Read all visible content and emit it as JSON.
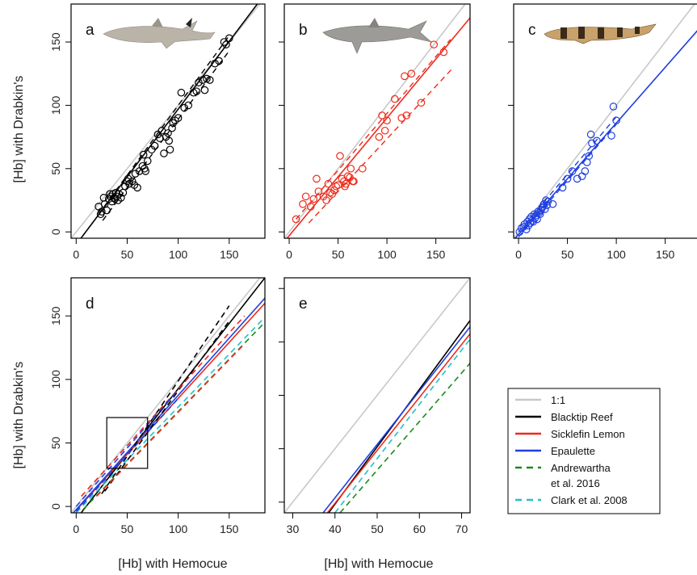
{
  "figure": {
    "ylabel": "[Hb] with Drabkin's",
    "xlabel": "[Hb] with Hemocue"
  },
  "colors": {
    "one_to_one": "#c8c8c8",
    "blacktip": "#000000",
    "sicklefin": "#ee2a1b",
    "epaulette": "#1f3fe0",
    "andrewartha": "#1a8a1a",
    "clark": "#22c0c8"
  },
  "legend": {
    "items": [
      {
        "text": "1:1",
        "color": "#c8c8c8",
        "dash": false
      },
      {
        "text": "Blacktip Reef",
        "color": "#000000",
        "dash": false
      },
      {
        "text": "Sicklefin Lemon",
        "color": "#ee2a1b",
        "dash": false
      },
      {
        "text": "Epaulette",
        "color": "#1f3fe0",
        "dash": false
      },
      {
        "text": "Andrewartha",
        "text2": "et al. 2016",
        "color": "#1a8a1a",
        "dash": true
      },
      {
        "text": "Clark et al. 2008",
        "color": "#22c0c8",
        "dash": true
      }
    ]
  },
  "chart_data": [
    {
      "panel": "a",
      "type": "scatter",
      "species_icon": "blacktip-reef-shark-icon",
      "xlim": [
        -5,
        185
      ],
      "ylim": [
        -5,
        180
      ],
      "xticks": [
        0,
        50,
        100,
        150
      ],
      "yticks": [
        0,
        50,
        100,
        150
      ],
      "color": "#000000",
      "points": [
        [
          22,
          20
        ],
        [
          24,
          14
        ],
        [
          25,
          16
        ],
        [
          27,
          27
        ],
        [
          28,
          22
        ],
        [
          30,
          17
        ],
        [
          32,
          26
        ],
        [
          33,
          30
        ],
        [
          34,
          28
        ],
        [
          35,
          24
        ],
        [
          36,
          30
        ],
        [
          37,
          27
        ],
        [
          38,
          26
        ],
        [
          39,
          31
        ],
        [
          40,
          28
        ],
        [
          41,
          25
        ],
        [
          42,
          30
        ],
        [
          44,
          27
        ],
        [
          46,
          31
        ],
        [
          48,
          36
        ],
        [
          50,
          40
        ],
        [
          51,
          42
        ],
        [
          52,
          38
        ],
        [
          55,
          40
        ],
        [
          57,
          37
        ],
        [
          58,
          46
        ],
        [
          60,
          35
        ],
        [
          62,
          48
        ],
        [
          65,
          52
        ],
        [
          66,
          61
        ],
        [
          67,
          50
        ],
        [
          68,
          48
        ],
        [
          70,
          56
        ],
        [
          74,
          65
        ],
        [
          77,
          68
        ],
        [
          80,
          77
        ],
        [
          82,
          74
        ],
        [
          84,
          80
        ],
        [
          86,
          62
        ],
        [
          88,
          75
        ],
        [
          90,
          78
        ],
        [
          91,
          72
        ],
        [
          92,
          65
        ],
        [
          94,
          82
        ],
        [
          95,
          86
        ],
        [
          97,
          88
        ],
        [
          100,
          90
        ],
        [
          103,
          110
        ],
        [
          106,
          98
        ],
        [
          110,
          100
        ],
        [
          115,
          110
        ],
        [
          118,
          111
        ],
        [
          120,
          118
        ],
        [
          124,
          120
        ],
        [
          126,
          112
        ],
        [
          128,
          121
        ],
        [
          131,
          120
        ],
        [
          136,
          133
        ],
        [
          140,
          135
        ],
        [
          145,
          150
        ],
        [
          147,
          148
        ],
        [
          150,
          153
        ]
      ],
      "fit": {
        "slope": 1.07,
        "intercept": -10
      },
      "ci_upper": [
        [
          22,
          14
        ],
        [
          150,
          155
        ]
      ],
      "ci_lower": [
        [
          26,
          9
        ],
        [
          150,
          143
        ]
      ],
      "one_to_one": true
    },
    {
      "panel": "b",
      "type": "scatter",
      "species_icon": "sicklefin-lemon-shark-icon",
      "xlim": [
        -5,
        185
      ],
      "ylim": [
        -5,
        180
      ],
      "xticks": [
        0,
        50,
        100,
        150
      ],
      "yticks": [
        0,
        50,
        100,
        150
      ],
      "color": "#ee2a1b",
      "points": [
        [
          7,
          10
        ],
        [
          14,
          22
        ],
        [
          17,
          28
        ],
        [
          22,
          20
        ],
        [
          25,
          26
        ],
        [
          28,
          42
        ],
        [
          30,
          32
        ],
        [
          35,
          28
        ],
        [
          38,
          25
        ],
        [
          40,
          38
        ],
        [
          42,
          31
        ],
        [
          44,
          30
        ],
        [
          46,
          33
        ],
        [
          48,
          36
        ],
        [
          50,
          37
        ],
        [
          52,
          60
        ],
        [
          54,
          42
        ],
        [
          56,
          40
        ],
        [
          57,
          36
        ],
        [
          58,
          38
        ],
        [
          60,
          44
        ],
        [
          62,
          43
        ],
        [
          63,
          50
        ],
        [
          65,
          40
        ],
        [
          66,
          40
        ],
        [
          75,
          50
        ],
        [
          92,
          75
        ],
        [
          95,
          92
        ],
        [
          98,
          80
        ],
        [
          100,
          88
        ],
        [
          108,
          105
        ],
        [
          115,
          90
        ],
        [
          118,
          123
        ],
        [
          120,
          92
        ],
        [
          125,
          125
        ],
        [
          135,
          102
        ],
        [
          148,
          148
        ],
        [
          158,
          142
        ]
      ],
      "fit": {
        "slope": 0.93,
        "intercept": -3
      },
      "ci_upper": [
        [
          7,
          10
        ],
        [
          165,
          152
        ]
      ],
      "ci_lower": [
        [
          20,
          7
        ],
        [
          168,
          130
        ]
      ],
      "one_to_one": true
    },
    {
      "panel": "c",
      "type": "scatter",
      "species_icon": "epaulette-shark-icon",
      "xlim": [
        -5,
        185
      ],
      "ylim": [
        -5,
        180
      ],
      "xticks": [
        0,
        50,
        100,
        150
      ],
      "yticks": [
        0,
        50,
        100,
        150
      ],
      "color": "#1f3fe0",
      "points": [
        [
          1,
          0
        ],
        [
          3,
          3
        ],
        [
          5,
          4
        ],
        [
          6,
          6
        ],
        [
          8,
          2
        ],
        [
          9,
          8
        ],
        [
          10,
          5
        ],
        [
          11,
          10
        ],
        [
          12,
          7
        ],
        [
          13,
          12
        ],
        [
          14,
          9
        ],
        [
          15,
          8
        ],
        [
          16,
          14
        ],
        [
          17,
          11
        ],
        [
          18,
          13
        ],
        [
          19,
          10
        ],
        [
          20,
          16
        ],
        [
          21,
          15
        ],
        [
          22,
          14
        ],
        [
          23,
          17
        ],
        [
          24,
          19
        ],
        [
          25,
          20
        ],
        [
          26,
          22
        ],
        [
          27,
          18
        ],
        [
          28,
          25
        ],
        [
          29,
          21
        ],
        [
          30,
          24
        ],
        [
          35,
          22
        ],
        [
          45,
          35
        ],
        [
          50,
          42
        ],
        [
          55,
          48
        ],
        [
          60,
          42
        ],
        [
          65,
          44
        ],
        [
          68,
          48
        ],
        [
          70,
          55
        ],
        [
          72,
          60
        ],
        [
          74,
          77
        ],
        [
          75,
          70
        ],
        [
          80,
          72
        ],
        [
          95,
          76
        ],
        [
          97,
          99
        ],
        [
          100,
          88
        ]
      ],
      "fit": {
        "slope": 0.88,
        "intercept": -2
      },
      "ci_upper": [
        [
          0,
          0
        ],
        [
          100,
          91
        ]
      ],
      "ci_lower": [
        [
          0,
          -4
        ],
        [
          100,
          85
        ]
      ],
      "one_to_one": true
    },
    {
      "panel": "d",
      "type": "line",
      "xlim": [
        -5,
        185
      ],
      "ylim": [
        -5,
        180
      ],
      "xticks": [
        0,
        50,
        100,
        150
      ],
      "yticks": [
        0,
        50,
        100,
        150
      ],
      "lines": [
        {
          "color": "#c8c8c8",
          "dash": false,
          "from": [
            -5,
            -5
          ],
          "to": [
            185,
            185
          ]
        },
        {
          "color": "#000000",
          "dash": false,
          "from": [
            0,
            -10
          ],
          "to": [
            185,
            180
          ]
        },
        {
          "color": "#ee2a1b",
          "dash": false,
          "from": [
            0,
            -3
          ],
          "to": [
            185,
            160
          ]
        },
        {
          "color": "#1f3fe0",
          "dash": false,
          "from": [
            -5,
            -7
          ],
          "to": [
            185,
            164
          ]
        },
        {
          "color": "#1a8a1a",
          "dash": true,
          "from": [
            0,
            -8
          ],
          "to": [
            185,
            145
          ]
        },
        {
          "color": "#22c0c8",
          "dash": true,
          "from": [
            0,
            -5
          ],
          "to": [
            185,
            149
          ]
        },
        {
          "color": "#000000",
          "dash": true,
          "from": [
            25,
            10
          ],
          "to": [
            150,
            158
          ]
        },
        {
          "color": "#000000",
          "dash": true,
          "from": [
            28,
            12
          ],
          "to": [
            150,
            146
          ]
        },
        {
          "color": "#ee2a1b",
          "dash": true,
          "from": [
            5,
            8
          ],
          "to": [
            165,
            150
          ]
        },
        {
          "color": "#ee2a1b",
          "dash": true,
          "from": [
            20,
            8
          ],
          "to": [
            165,
            128
          ]
        },
        {
          "color": "#1f3fe0",
          "dash": true,
          "from": [
            0,
            0
          ],
          "to": [
            100,
            92
          ]
        },
        {
          "color": "#1f3fe0",
          "dash": true,
          "from": [
            0,
            -4
          ],
          "to": [
            100,
            85
          ]
        }
      ],
      "inset_box": {
        "x": [
          30,
          70
        ],
        "y": [
          30,
          70
        ]
      }
    },
    {
      "panel": "e",
      "type": "line",
      "xlim": [
        28,
        72
      ],
      "ylim": [
        28,
        72
      ],
      "xticks": [
        30,
        40,
        50,
        60,
        70
      ],
      "yticks": [],
      "lines": [
        {
          "color": "#c8c8c8",
          "dash": false,
          "from": [
            28,
            28
          ],
          "to": [
            72,
            72
          ]
        },
        {
          "color": "#000000",
          "dash": false,
          "from": [
            38.5,
            28
          ],
          "to": [
            72,
            64
          ]
        },
        {
          "color": "#ee2a1b",
          "dash": false,
          "from": [
            38.2,
            28
          ],
          "to": [
            72,
            61.5
          ]
        },
        {
          "color": "#1f3fe0",
          "dash": false,
          "from": [
            37.2,
            28
          ],
          "to": [
            72,
            62.8
          ]
        },
        {
          "color": "#22c0c8",
          "dash": true,
          "from": [
            40,
            28
          ],
          "to": [
            72,
            60.5
          ]
        },
        {
          "color": "#1a8a1a",
          "dash": true,
          "from": [
            41.2,
            28
          ],
          "to": [
            72,
            56
          ]
        }
      ]
    }
  ]
}
